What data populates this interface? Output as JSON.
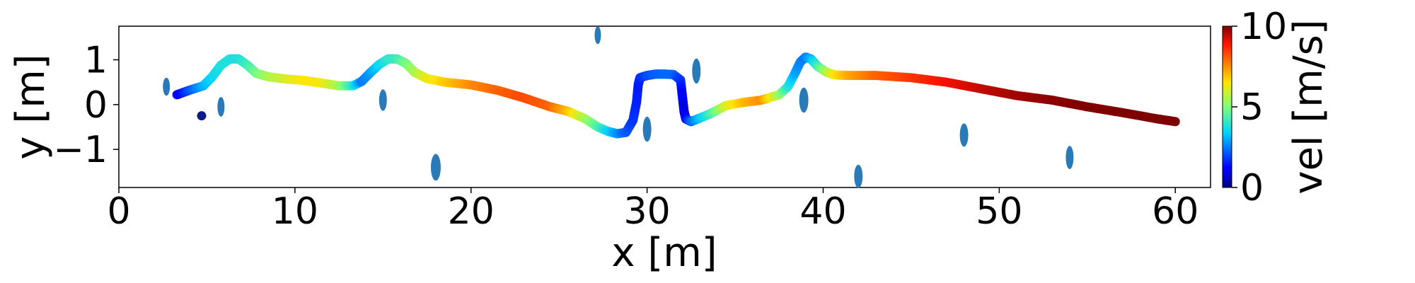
{
  "chart_data": {
    "type": "scatter",
    "title": "",
    "xlabel": "x [m]",
    "ylabel": "y [m]",
    "xlim": [
      0,
      62
    ],
    "ylim": [
      -1.85,
      1.75
    ],
    "xticks": [
      0,
      10,
      20,
      30,
      40,
      50,
      60
    ],
    "yticks": [
      1,
      0,
      -1
    ],
    "ytick_labels": [
      "1",
      "0",
      "−1"
    ],
    "grid": false,
    "colorbar": {
      "label": "vel [m/s]",
      "range": [
        0,
        10
      ],
      "ticks": [
        0,
        5,
        10
      ],
      "colormap": "jet"
    },
    "start_marker": {
      "x": 4.7,
      "y": -0.25,
      "color": "#0d1a8c"
    },
    "obstacle_color": "#2a7ab8",
    "obstacles": [
      {
        "x": 2.7,
        "y": 0.4,
        "rx": 0.2,
        "ry": 0.2
      },
      {
        "x": 5.8,
        "y": -0.05,
        "rx": 0.2,
        "ry": 0.22
      },
      {
        "x": 15.0,
        "y": 0.1,
        "rx": 0.22,
        "ry": 0.24
      },
      {
        "x": 18.0,
        "y": -1.4,
        "rx": 0.28,
        "ry": 0.3
      },
      {
        "x": 27.2,
        "y": 1.55,
        "rx": 0.18,
        "ry": 0.2
      },
      {
        "x": 30.0,
        "y": -0.55,
        "rx": 0.24,
        "ry": 0.28
      },
      {
        "x": 32.8,
        "y": 0.75,
        "rx": 0.24,
        "ry": 0.28
      },
      {
        "x": 38.9,
        "y": 0.1,
        "rx": 0.26,
        "ry": 0.28
      },
      {
        "x": 42.0,
        "y": -1.6,
        "rx": 0.24,
        "ry": 0.26
      },
      {
        "x": 48.0,
        "y": -0.68,
        "rx": 0.24,
        "ry": 0.26
      },
      {
        "x": 54.0,
        "y": -1.18,
        "rx": 0.22,
        "ry": 0.26
      }
    ],
    "trajectory": {
      "x": [
        3.3,
        4.0,
        4.8,
        5.3,
        5.8,
        6.3,
        6.8,
        7.3,
        7.8,
        8.5,
        9.5,
        10.5,
        11.5,
        12.5,
        13.3,
        13.8,
        14.3,
        14.8,
        15.3,
        15.8,
        16.3,
        16.8,
        17.5,
        18.5,
        20.0,
        21.5,
        23.0,
        24.5,
        25.5,
        26.5,
        27.2,
        27.8,
        28.3,
        28.8,
        29.2,
        29.4,
        29.5,
        29.6,
        30.0,
        30.5,
        31.0,
        31.5,
        31.9,
        32.0,
        32.1,
        32.2,
        32.5,
        33.0,
        33.5,
        34.0,
        34.5,
        35.5,
        36.5,
        37.5,
        38.0,
        38.4,
        38.7,
        39.0,
        39.3,
        39.7,
        40.2,
        40.7,
        41.5,
        43.0,
        45.0,
        47.0,
        49.0,
        51.0,
        53.0,
        55.0,
        57.0,
        59.0,
        60.0
      ],
      "y": [
        0.22,
        0.32,
        0.42,
        0.62,
        0.88,
        1.02,
        1.02,
        0.88,
        0.7,
        0.62,
        0.57,
        0.54,
        0.48,
        0.42,
        0.42,
        0.52,
        0.72,
        0.9,
        1.02,
        1.02,
        0.92,
        0.72,
        0.58,
        0.5,
        0.44,
        0.32,
        0.15,
        -0.05,
        -0.15,
        -0.32,
        -0.5,
        -0.6,
        -0.65,
        -0.62,
        -0.35,
        0.05,
        0.45,
        0.6,
        0.65,
        0.68,
        0.68,
        0.67,
        0.55,
        0.2,
        -0.15,
        -0.32,
        -0.38,
        -0.3,
        -0.22,
        -0.12,
        -0.02,
        0.05,
        0.1,
        0.22,
        0.4,
        0.7,
        0.95,
        1.06,
        1.02,
        0.85,
        0.72,
        0.66,
        0.65,
        0.65,
        0.6,
        0.5,
        0.35,
        0.2,
        0.1,
        -0.05,
        -0.18,
        -0.32,
        -0.38
      ],
      "vel": [
        1.0,
        2.0,
        3.0,
        3.5,
        3.8,
        3.8,
        3.8,
        4.2,
        4.8,
        5.5,
        6.0,
        6.5,
        6.4,
        5.5,
        4.0,
        2.5,
        2.8,
        3.5,
        4.0,
        4.2,
        4.8,
        5.5,
        6.2,
        6.8,
        7.5,
        8.0,
        8.3,
        8.0,
        7.0,
        5.5,
        4.5,
        3.5,
        2.8,
        2.2,
        1.8,
        1.6,
        1.5,
        1.6,
        2.0,
        2.2,
        2.3,
        2.3,
        1.8,
        1.2,
        0.8,
        1.2,
        2.2,
        3.2,
        4.0,
        5.0,
        6.0,
        7.0,
        7.5,
        5.5,
        4.0,
        3.0,
        2.6,
        2.5,
        3.0,
        4.2,
        5.5,
        6.5,
        7.2,
        8.0,
        8.5,
        9.0,
        9.4,
        9.7,
        9.9,
        10.0,
        10.0,
        10.0,
        10.0
      ]
    }
  }
}
